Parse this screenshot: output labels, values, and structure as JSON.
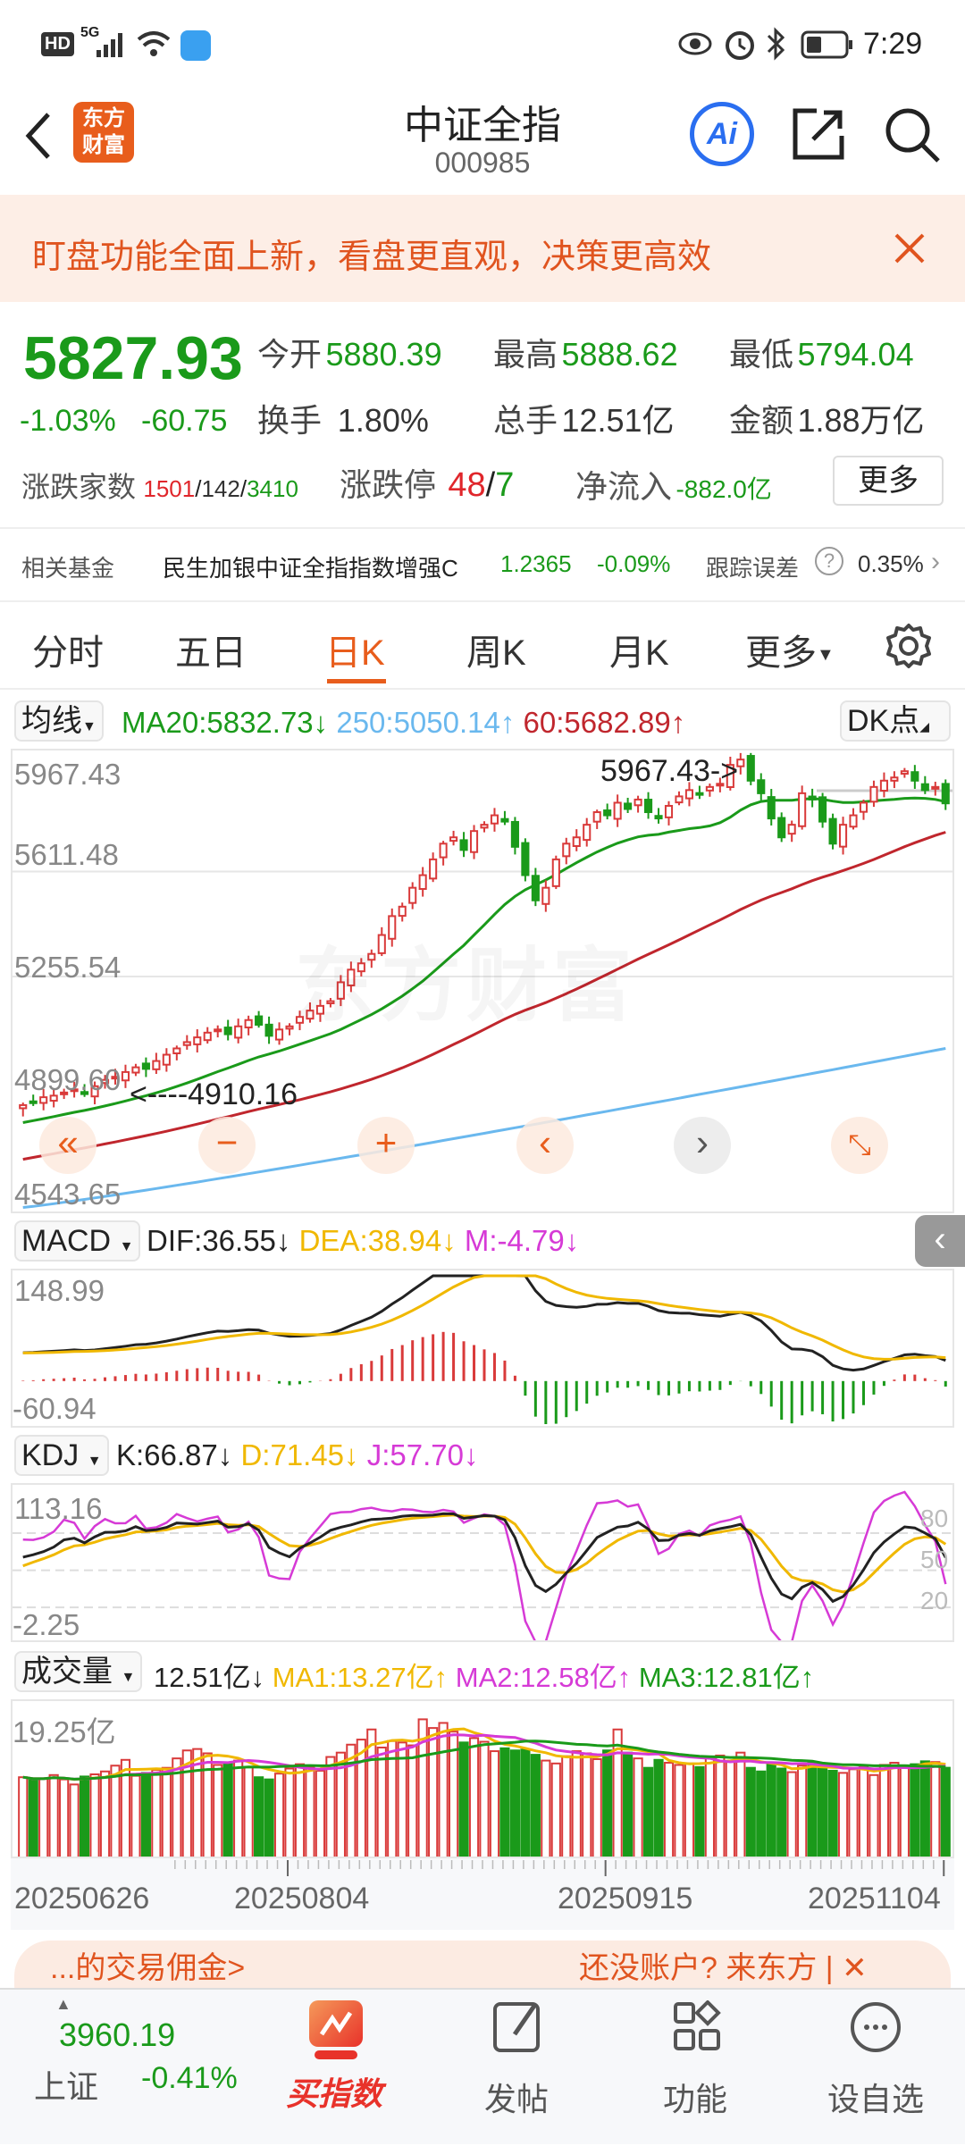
{
  "status_bar": {
    "left_badges": [
      "HD",
      "5G"
    ],
    "time": "7:29",
    "icons": [
      "signal-icon",
      "wifi-icon",
      "app-icon",
      "eye-icon",
      "alarm-icon",
      "bluetooth-icon",
      "battery-icon"
    ]
  },
  "header": {
    "title": "中证全指",
    "code": "000985",
    "logo_text": [
      "东方",
      "财富"
    ],
    "ai_label": "Ai"
  },
  "banner": {
    "text": "盯盘功能全面上新，看盘更直观，决策更高效"
  },
  "quote": {
    "price": "5827.93",
    "change_pct": "-1.03%",
    "change": "-60.75",
    "open_label": "今开",
    "open": "5880.39",
    "high_label": "最高",
    "high": "5888.62",
    "low_label": "最低",
    "low": "5794.04",
    "turnover_label": "换手",
    "turnover": "1.80%",
    "volume_label": "总手",
    "volume": "12.51亿",
    "amount_label": "金额",
    "amount": "1.88万亿",
    "breadth_label": "涨跌家数",
    "breadth_up": "1501",
    "breadth_flat": "142",
    "breadth_down": "3410",
    "limit_label": "涨跌停",
    "limit_up": "48",
    "limit_down": "7",
    "netflow_label": "净流入",
    "netflow": "-882.0亿",
    "more_label": "更多"
  },
  "fund": {
    "label": "相关基金",
    "name": "民生加银中证全指指数增强C",
    "nav": "1.2365",
    "change": "-0.09%",
    "error_label": "跟踪误差",
    "error": "0.35%"
  },
  "tabs": [
    {
      "label": "分时"
    },
    {
      "label": "五日"
    },
    {
      "label": "日K",
      "active": true
    },
    {
      "label": "周K"
    },
    {
      "label": "月K"
    },
    {
      "label": "更多"
    }
  ],
  "main_legend": {
    "selector": "均线",
    "ma20": "MA20:5832.73",
    "ma20_arrow": "↓",
    "ma250": "250:5050.14",
    "ma250_arrow": "↑",
    "ma60": "60:5682.89",
    "ma60_arrow": "↑",
    "dk_label": "DK点"
  },
  "main_axis": {
    "labels": [
      "5967.43",
      "5611.48",
      "5255.54",
      "4899.60",
      "4543.65"
    ],
    "max_marker": "5967.43->",
    "min_marker": "<----4910.16",
    "watermark": "东方财富"
  },
  "colors": {
    "up": "#d93a3a",
    "down": "#1a9a1a",
    "ma20": "#1a9a1a",
    "ma60": "#c0262d",
    "ma250": "#6ab8ee",
    "accent": "#e85d1c",
    "dif": "#222222",
    "dea": "#f0b800",
    "m": "#d63ad6"
  },
  "macd_legend": {
    "selector": "MACD",
    "dif": "DIF:36.55",
    "dif_arrow": "↓",
    "dea": "DEA:38.94",
    "dea_arrow": "↓",
    "m": "M:-4.79",
    "m_arrow": "↓",
    "axis_top": "148.99",
    "axis_bottom": "-60.94"
  },
  "kdj_legend": {
    "selector": "KDJ",
    "k": "K:66.87",
    "k_arrow": "↓",
    "d": "D:71.45",
    "d_arrow": "↓",
    "j": "J:57.70",
    "j_arrow": "↓",
    "axis_top": "113.16",
    "axis_bottom": "-2.25",
    "levels": [
      "80",
      "50",
      "20"
    ]
  },
  "vol_legend": {
    "selector": "成交量",
    "vol": "12.51亿",
    "vol_arrow": "↓",
    "ma1": "MA1:13.27亿",
    "ma1_arrow": "↑",
    "ma2": "MA2:12.58亿",
    "ma2_arrow": "↑",
    "ma3": "MA3:12.81亿",
    "ma3_arrow": "↑",
    "axis_top": "19.25亿"
  },
  "x_axis": {
    "labels": [
      "20250626",
      "20250804",
      "20250915",
      "20251104"
    ]
  },
  "chart_data": {
    "type": "candlestick",
    "closes": [
      4870,
      4880,
      4895,
      4900,
      4910,
      4920,
      4905,
      4930,
      4950,
      4960,
      4975,
      4990,
      4985,
      5010,
      5030,
      5050,
      5070,
      5085,
      5100,
      5110,
      5095,
      5120,
      5140,
      5125,
      5090,
      5110,
      5120,
      5150,
      5170,
      5185,
      5200,
      5260,
      5300,
      5320,
      5350,
      5410,
      5470,
      5500,
      5560,
      5600,
      5650,
      5700,
      5720,
      5680,
      5740,
      5760,
      5790,
      5770,
      5690,
      5600,
      5520,
      5560,
      5650,
      5700,
      5720,
      5760,
      5800,
      5790,
      5830,
      5810,
      5840,
      5800,
      5780,
      5820,
      5850,
      5870,
      5860,
      5880,
      5890,
      5950,
      5967,
      5900,
      5860,
      5780,
      5720,
      5760,
      5860,
      5840,
      5770,
      5700,
      5760,
      5790,
      5830,
      5880,
      5900,
      5910,
      5930,
      5900,
      5870,
      5880,
      5827.93
    ],
    "volumes": [
      11.2,
      10.8,
      11.0,
      11.5,
      10.9,
      10.2,
      11.3,
      11.6,
      12.0,
      12.8,
      13.6,
      11.4,
      11.8,
      12.2,
      12.5,
      13.8,
      14.9,
      15.1,
      14.5,
      12.9,
      13.1,
      13.5,
      12.6,
      11.2,
      10.9,
      11.7,
      12.4,
      13.0,
      12.6,
      12.1,
      14.0,
      14.6,
      15.7,
      16.4,
      17.8,
      15.3,
      16.2,
      16.0,
      15.6,
      19.2,
      18.0,
      18.7,
      17.5,
      16.0,
      16.6,
      16.1,
      14.8,
      15.2,
      14.9,
      15.0,
      14.3,
      13.5,
      13.1,
      14.1,
      14.8,
      14.5,
      13.7,
      14.9,
      17.8,
      14.6,
      13.8,
      12.5,
      13.6,
      13.2,
      12.9,
      13.1,
      12.6,
      14.0,
      14.2,
      13.4,
      14.6,
      12.5,
      12.0,
      13.1,
      12.4,
      11.9,
      12.8,
      13.3,
      12.7,
      12.1,
      11.8,
      12.3,
      12.6,
      11.5,
      12.9,
      13.2,
      12.8,
      13.0,
      13.4,
      13.3,
      12.51
    ],
    "ylim": [
      4543.65,
      5967.43
    ],
    "volume_max": 19.25
  },
  "controls": [
    "rewind-icon",
    "zoom-out-icon",
    "zoom-in-icon",
    "prev-icon",
    "next-icon",
    "fullscreen-icon"
  ],
  "ad": {
    "left": "...的交易佣金>",
    "right": "还没账户? 来东方 | ✕"
  },
  "bottom_nav": {
    "index_value": "3960.19",
    "index_name": "上证",
    "index_change": "-0.41%",
    "items": [
      {
        "label": "买指数"
      },
      {
        "label": "发帖"
      },
      {
        "label": "功能"
      },
      {
        "label": "设自选"
      }
    ]
  }
}
